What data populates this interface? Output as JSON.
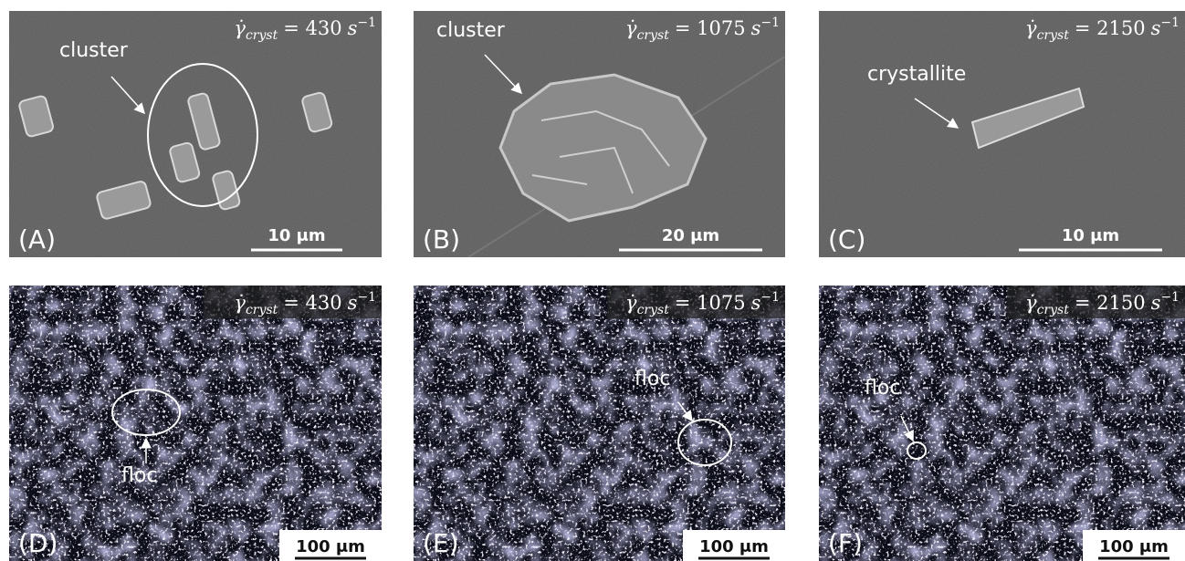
{
  "panels": [
    {
      "label": "(A)",
      "rate": {
        "symbol": "γ̇",
        "sub": "cryst",
        "value": "= 430",
        "unit": "s",
        "exp": "−1"
      },
      "annotation": "cluster",
      "scale_bar": "10 μm"
    },
    {
      "label": "(B)",
      "rate": {
        "symbol": "γ̇",
        "sub": "cryst",
        "value": "= 1075",
        "unit": "s",
        "exp": "−1"
      },
      "annotation": "cluster",
      "scale_bar": "20 μm"
    },
    {
      "label": "(C)",
      "rate": {
        "symbol": "γ̇",
        "sub": "cryst",
        "value": "= 2150",
        "unit": "s",
        "exp": "−1"
      },
      "annotation": "crystallite",
      "scale_bar": "10 μm"
    },
    {
      "label": "(D)",
      "rate": {
        "symbol": "γ̇",
        "sub": "cryst",
        "value": "= 430",
        "unit": "s",
        "exp": "−1"
      },
      "annotation": "floc",
      "scale_bar": "100 μm"
    },
    {
      "label": "(E)",
      "rate": {
        "symbol": "γ̇",
        "sub": "cryst",
        "value": "= 1075",
        "unit": "s",
        "exp": "−1"
      },
      "annotation": "floc",
      "scale_bar": "100 μm"
    },
    {
      "label": "(F)",
      "rate": {
        "symbol": "γ̇",
        "sub": "cryst",
        "value": "= 2150",
        "unit": "s",
        "exp": "−1"
      },
      "annotation": "floc",
      "scale_bar": "100 μm"
    }
  ]
}
